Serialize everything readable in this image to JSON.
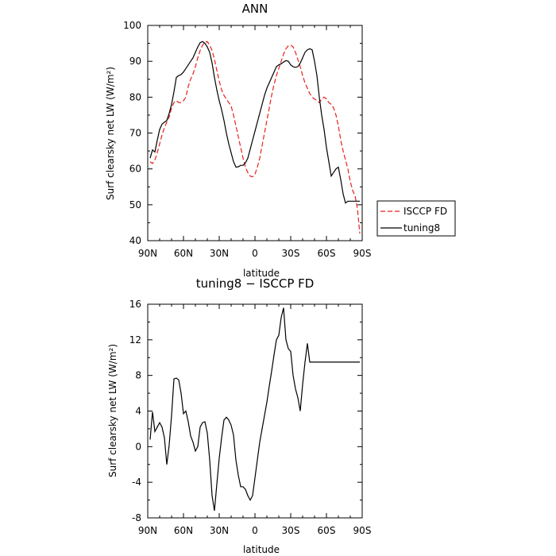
{
  "chart_data": [
    {
      "type": "line",
      "title": "ANN",
      "xlabel": "latitude",
      "ylabel": "Surf clearsky net LW (W/m²)",
      "xlim": [
        90,
        -90
      ],
      "ylim": [
        40,
        100
      ],
      "x_tick_labels": [
        "90N",
        "60N",
        "30N",
        "0",
        "30S",
        "60S",
        "90S"
      ],
      "y_ticks": [
        40,
        50,
        60,
        70,
        80,
        90,
        100
      ],
      "grid": false,
      "legend": "right",
      "series": [
        {
          "name": "ISCCP FD",
          "color": "#e8201c",
          "dash": "dashed",
          "x": [
            88,
            86,
            84,
            82,
            80,
            78,
            76,
            74,
            72,
            70,
            68,
            66,
            64,
            62,
            60,
            58,
            56,
            54,
            52,
            50,
            48,
            46,
            44,
            42,
            40,
            38,
            36,
            34,
            32,
            30,
            28,
            26,
            24,
            22,
            20,
            18,
            16,
            14,
            12,
            10,
            8,
            6,
            4,
            2,
            0,
            -2,
            -4,
            -6,
            -8,
            -10,
            -12,
            -14,
            -16,
            -18,
            -20,
            -22,
            -24,
            -26,
            -28,
            -30,
            -32,
            -34,
            -36,
            -38,
            -40,
            -42,
            -44,
            -46,
            -48,
            -50,
            -52,
            -54,
            -56,
            -58,
            -60,
            -62,
            -64,
            -66,
            -68,
            -70,
            -72,
            -74,
            -76,
            -78,
            -80,
            -82,
            -84,
            -86,
            -88
          ],
          "values": [
            62,
            61.5,
            62.5,
            64.5,
            67,
            69.5,
            71.5,
            73,
            74.5,
            77,
            78.5,
            79,
            78.5,
            78.5,
            79,
            80,
            83,
            85,
            86.5,
            88.5,
            91,
            93,
            94.5,
            95.3,
            95.5,
            94.5,
            93,
            90.5,
            87.5,
            84.5,
            82,
            80.5,
            79.5,
            78.5,
            77.5,
            75,
            72,
            69,
            66,
            63,
            60.5,
            59,
            58,
            57.8,
            58.5,
            60.5,
            63,
            66.5,
            70,
            73.5,
            77,
            80.5,
            83.5,
            86,
            88,
            90,
            92,
            93.5,
            94.3,
            94.5,
            94,
            92.5,
            90.5,
            88.5,
            86,
            84,
            82.5,
            81,
            80,
            79.5,
            79,
            78.5,
            79.5,
            80,
            79.5,
            78.5,
            78,
            77,
            75,
            72,
            68,
            65,
            62.5,
            60,
            56.5,
            54,
            52.5,
            49,
            42
          ]
        },
        {
          "name": "tuning8",
          "color": "#000000",
          "dash": "solid",
          "x": [
            88,
            86,
            84,
            82,
            80,
            78,
            76,
            74,
            72,
            70,
            68,
            66,
            64,
            62,
            60,
            58,
            56,
            54,
            52,
            50,
            48,
            46,
            44,
            42,
            40,
            38,
            36,
            34,
            32,
            30,
            28,
            26,
            24,
            22,
            20,
            18,
            16,
            14,
            12,
            10,
            8,
            6,
            4,
            2,
            0,
            -2,
            -4,
            -6,
            -8,
            -10,
            -12,
            -14,
            -16,
            -18,
            -20,
            -22,
            -24,
            -26,
            -28,
            -30,
            -32,
            -34,
            -36,
            -38,
            -40,
            -42,
            -44,
            -46,
            -48,
            -50,
            -52,
            -54,
            -56,
            -58,
            -60,
            -62,
            -64,
            -66,
            -68,
            -70,
            -72,
            -74,
            -76,
            -78,
            -80,
            -82,
            -84,
            -86,
            -88
          ],
          "values": [
            63,
            65.3,
            64.7,
            68,
            71,
            72.5,
            73,
            73.5,
            75.5,
            78,
            81.5,
            85.5,
            86,
            86.3,
            87,
            88,
            89,
            90,
            91,
            92.5,
            94,
            95.2,
            95.5,
            95,
            94,
            92.5,
            89.5,
            85.5,
            82,
            79,
            76.5,
            73.5,
            70,
            67,
            64.5,
            62,
            60.5,
            60.6,
            61,
            61,
            61.7,
            63,
            65.5,
            68,
            70.5,
            73,
            75.5,
            78,
            80.5,
            82.5,
            84,
            85.5,
            87,
            88.5,
            89,
            89.3,
            89.8,
            90.2,
            90,
            89,
            88.5,
            88.3,
            88.5,
            89.5,
            91,
            92.5,
            93.2,
            93.5,
            93.2,
            90,
            86,
            80,
            75,
            71,
            66,
            62,
            58,
            59,
            60,
            60.5,
            57,
            53,
            50.5,
            51,
            51,
            51,
            51,
            51,
            51
          ]
        }
      ]
    },
    {
      "type": "line",
      "title": "tuning8 − ISCCP FD",
      "xlabel": "latitude",
      "ylabel": "Surf clearsky net LW (W/m²)",
      "xlim": [
        90,
        -90
      ],
      "ylim": [
        -8,
        16
      ],
      "x_tick_labels": [
        "90N",
        "60N",
        "30N",
        "0",
        "30S",
        "60S",
        "90S"
      ],
      "y_ticks": [
        -8,
        -4,
        0,
        4,
        8,
        12,
        16
      ],
      "grid": false,
      "series": [
        {
          "name": "",
          "color": "#000000",
          "dash": "solid",
          "x": [
            88,
            86,
            84,
            82,
            80,
            78,
            76,
            74,
            72,
            70,
            68,
            66,
            64,
            62,
            60,
            58,
            56,
            54,
            52,
            50,
            48,
            46,
            44,
            42,
            40,
            38,
            36,
            34,
            32,
            30,
            28,
            26,
            24,
            22,
            20,
            18,
            16,
            14,
            12,
            10,
            8,
            6,
            4,
            2,
            0,
            -2,
            -4,
            -6,
            -8,
            -10,
            -12,
            -14,
            -16,
            -18,
            -20,
            -22,
            -24,
            -26,
            -28,
            -30,
            -32,
            -34,
            -36,
            -38,
            -40,
            -42,
            -44,
            -46,
            -48,
            -50,
            -52,
            -54,
            -56,
            -58,
            -60,
            -62,
            -64,
            -66,
            -68,
            -70,
            -72,
            -74,
            -76,
            -78,
            -80,
            -82,
            -84,
            -86,
            -88
          ],
          "values": [
            0.8,
            3.9,
            1.7,
            2.2,
            2.7,
            2.2,
            1,
            -2,
            0.2,
            3.5,
            7.6,
            7.7,
            7.5,
            6,
            3.7,
            4,
            2.8,
            1.2,
            0.5,
            -0.5,
            0,
            2.2,
            2.7,
            2.8,
            1.5,
            -1.5,
            -5.5,
            -7.2,
            -4.2,
            -1.3,
            1,
            3,
            3.3,
            3,
            2.4,
            1.3,
            -1.5,
            -3.2,
            -4.5,
            -4.5,
            -4.8,
            -5.5,
            -6,
            -5.5,
            -3.5,
            -1.5,
            0.5,
            2,
            3.5,
            5,
            6.8,
            8.5,
            10.3,
            12,
            12.5,
            14.5,
            15.6,
            12,
            11,
            10.7,
            8,
            6.5,
            5.5,
            4,
            7,
            9.5,
            11.6,
            9.5,
            9.5,
            9.5,
            9.5,
            9.5,
            9.5,
            9.5,
            9.5,
            9.5,
            9.5,
            9.5,
            9.5,
            9.5,
            9.5,
            9.5,
            9.5,
            9.5,
            9.5,
            9.5,
            9.5,
            9.5,
            9.5
          ]
        }
      ]
    }
  ]
}
